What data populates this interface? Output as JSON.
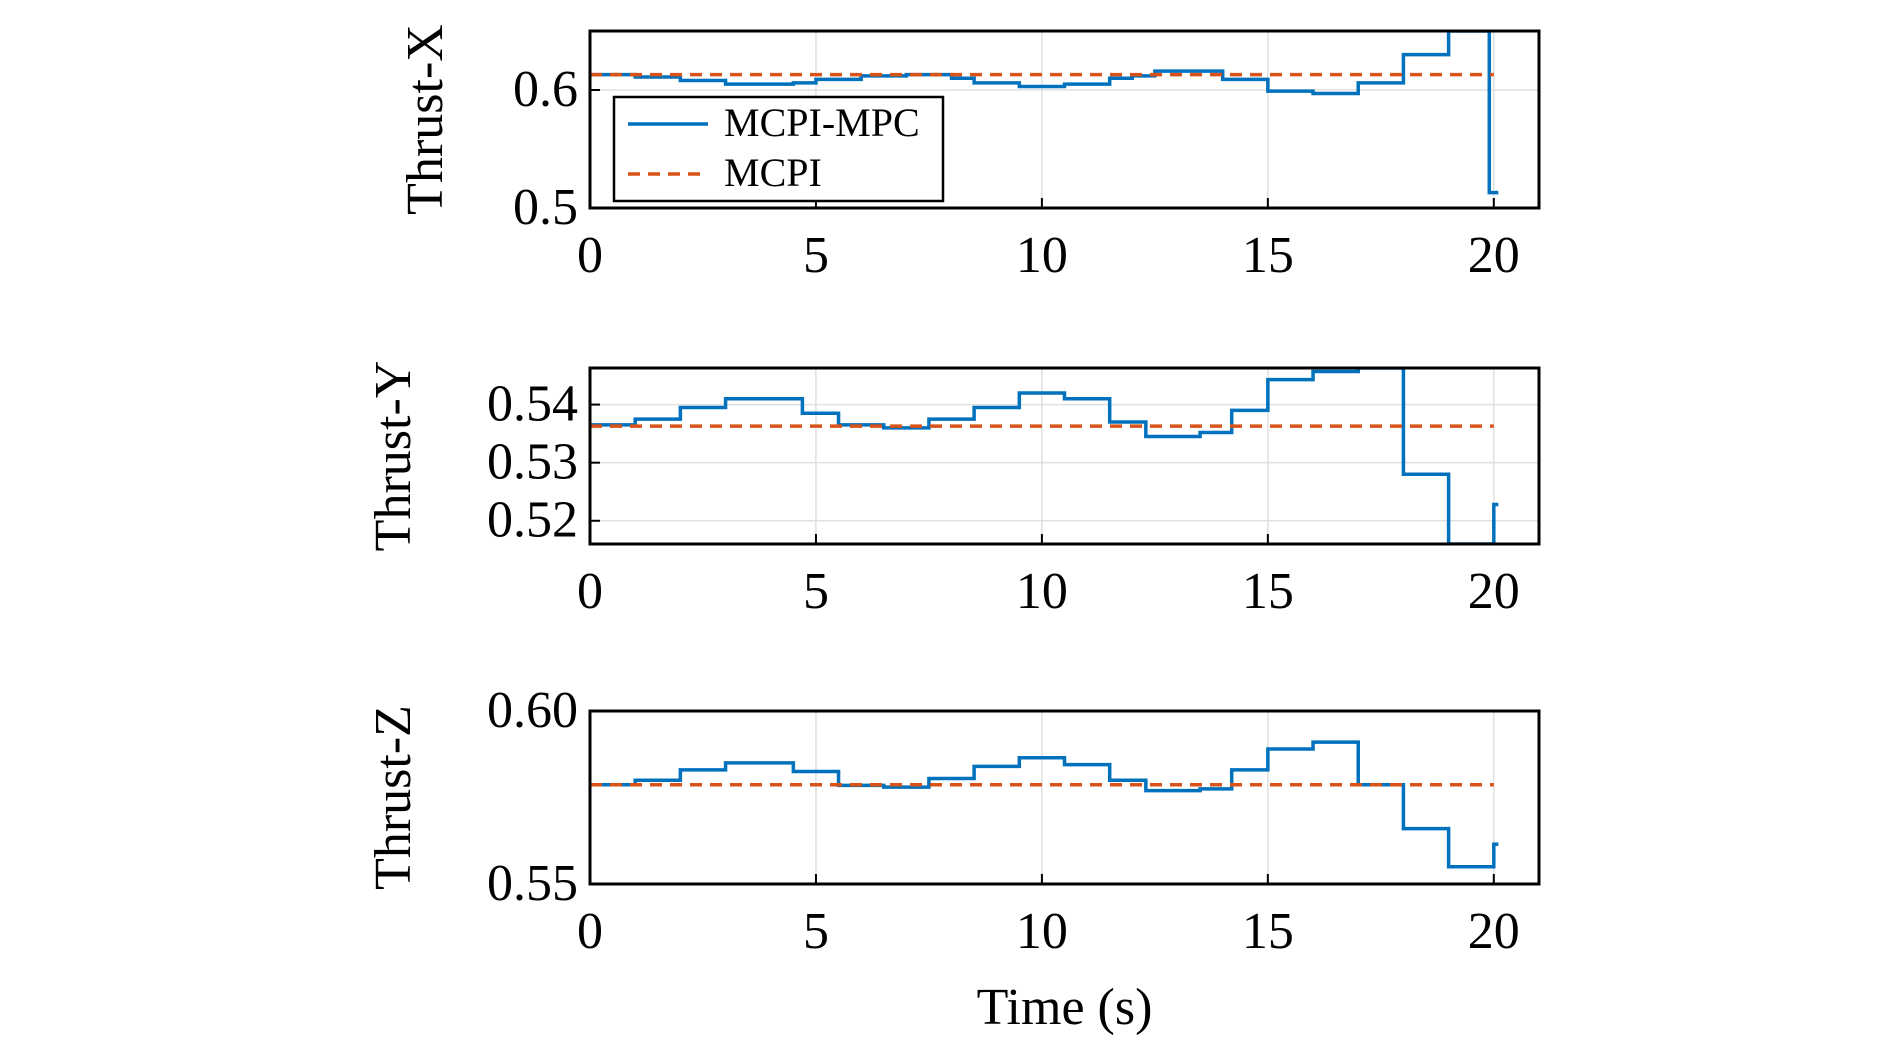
{
  "chart_data": [
    {
      "type": "line",
      "step": "post",
      "ylabel": "Thrust-X",
      "legend": "upper left",
      "grid": true,
      "xlim": [
        0,
        21
      ],
      "xticks": [
        0,
        5,
        10,
        15,
        20
      ],
      "ylim": [
        0.5,
        0.65
      ],
      "yticks": [
        0.5,
        0.6
      ],
      "series": [
        {
          "name": "MCPI-MPC",
          "color": "#0072bd",
          "style": "solid",
          "x": [
            0,
            1,
            2,
            3,
            4.5,
            5,
            6,
            7,
            8,
            8.5,
            9.5,
            10.5,
            11.5,
            12,
            12.5,
            14,
            15,
            16,
            17,
            18,
            19,
            19.9,
            20.1
          ],
          "values": [
            0.613,
            0.611,
            0.608,
            0.605,
            0.606,
            0.609,
            0.612,
            0.613,
            0.61,
            0.606,
            0.603,
            0.605,
            0.61,
            0.612,
            0.616,
            0.609,
            0.599,
            0.597,
            0.606,
            0.63,
            0.65,
            0.513,
            0.513
          ]
        },
        {
          "name": "MCPI",
          "color": "#d95319",
          "style": "dashed",
          "x": [
            0,
            20
          ],
          "values": [
            0.613,
            0.613
          ]
        }
      ]
    },
    {
      "type": "line",
      "step": "post",
      "ylabel": "Thrust-Y",
      "grid": true,
      "xlim": [
        0,
        21
      ],
      "xticks": [
        0,
        5,
        10,
        15,
        20
      ],
      "ylim": [
        0.516,
        0.5463
      ],
      "yticks": [
        0.52,
        0.53,
        0.54
      ],
      "series": [
        {
          "color": "#0072bd",
          "style": "solid",
          "x": [
            0,
            1,
            2,
            3,
            4.7,
            5.5,
            6.5,
            7.5,
            8.5,
            9.5,
            10.5,
            11.5,
            12.3,
            13.5,
            14.2,
            15,
            16,
            17,
            18,
            19,
            20,
            20.1
          ],
          "values": [
            0.5365,
            0.5375,
            0.5395,
            0.541,
            0.5385,
            0.5365,
            0.536,
            0.5375,
            0.5395,
            0.542,
            0.541,
            0.537,
            0.5345,
            0.5352,
            0.539,
            0.5443,
            0.5457,
            0.5463,
            0.528,
            0.516,
            0.5228,
            0.5228
          ]
        },
        {
          "color": "#d95319",
          "style": "dashed",
          "x": [
            0,
            20
          ],
          "values": [
            0.5363,
            0.5363
          ]
        }
      ]
    },
    {
      "type": "line",
      "step": "post",
      "ylabel": "Thrust-Z",
      "xlabel": "Time (s)",
      "grid": true,
      "xlim": [
        0,
        21
      ],
      "xticks": [
        0,
        5,
        10,
        15,
        20
      ],
      "ylim": [
        0.55,
        0.6
      ],
      "yticks": [
        0.55,
        {
          "value": 0.6,
          "label": "0.60"
        }
      ],
      "series": [
        {
          "color": "#0072bd",
          "style": "solid",
          "x": [
            0,
            1,
            2,
            3,
            4.5,
            5.5,
            6.5,
            7.5,
            8.5,
            9.5,
            10.5,
            11.5,
            12.3,
            13.5,
            14.2,
            15,
            16,
            17,
            18,
            19,
            20,
            20.1
          ],
          "values": [
            0.5787,
            0.58,
            0.583,
            0.585,
            0.5825,
            0.5785,
            0.578,
            0.5805,
            0.584,
            0.5865,
            0.5845,
            0.58,
            0.577,
            0.5775,
            0.583,
            0.589,
            0.591,
            0.5787,
            0.566,
            0.555,
            0.5615,
            0.5615
          ]
        },
        {
          "color": "#d95319",
          "style": "dashed",
          "x": [
            0,
            20
          ],
          "values": [
            0.5787,
            0.5787
          ]
        }
      ]
    }
  ]
}
